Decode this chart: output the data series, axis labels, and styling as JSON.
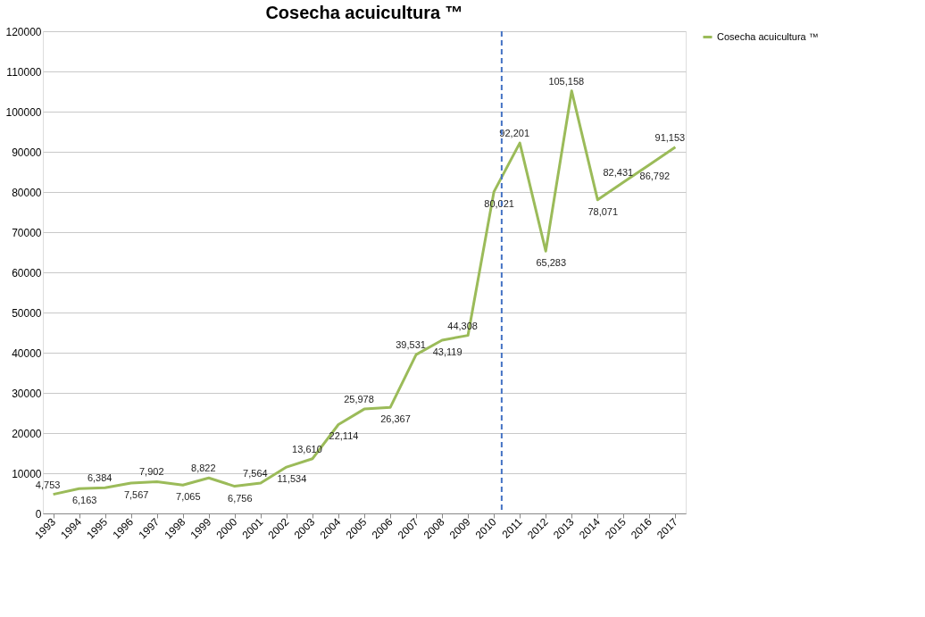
{
  "chart_data": {
    "type": "line",
    "title": "Cosecha acuicultura ™",
    "x": [
      1993,
      1994,
      1995,
      1996,
      1997,
      1998,
      1999,
      2000,
      2001,
      2002,
      2003,
      2004,
      2005,
      2006,
      2007,
      2008,
      2009,
      2010,
      2011,
      2012,
      2013,
      2014,
      2015,
      2016,
      2017
    ],
    "xlim": [
      1992.6,
      2017.4
    ],
    "xticks": [
      1993,
      1994,
      1995,
      1996,
      1997,
      1998,
      1999,
      2000,
      2001,
      2002,
      2003,
      2004,
      2005,
      2006,
      2007,
      2008,
      2009,
      2010,
      2011,
      2012,
      2013,
      2014,
      2015,
      2016,
      2017
    ],
    "ylim": [
      0,
      120000
    ],
    "yticks": [
      0,
      10000,
      20000,
      30000,
      40000,
      50000,
      60000,
      70000,
      80000,
      90000,
      100000,
      110000,
      120000
    ],
    "series": [
      {
        "name": "Cosecha acuicultura ™",
        "color": "#9bbb59",
        "values": [
          4753,
          6163,
          6384,
          7567,
          7902,
          7065,
          8822,
          6756,
          7564,
          11534,
          13610,
          22114,
          25978,
          26367,
          39531,
          43119,
          44308,
          80021,
          92201,
          65283,
          105158,
          78071,
          82431,
          86792,
          91153
        ],
        "value_labels": [
          "4,753",
          "6,163",
          "6,384",
          "7,567",
          "7,902",
          "7,065",
          "8,822",
          "6,756",
          "7,564",
          "11,534",
          "13,610",
          "22,114",
          "25,978",
          "26,367",
          "39,531",
          "43,119",
          "44,308",
          "80,021",
          "92,201",
          "65,283",
          "105,158",
          "78,071",
          "82,431",
          "86,792",
          "91,153"
        ]
      }
    ],
    "ref_lines": [
      {
        "axis": "x",
        "value": 2010.3,
        "color": "#4472c4",
        "line_style": "dashed"
      }
    ],
    "grid": "y",
    "legend": "right",
    "marker": "none",
    "line_style": "solid"
  }
}
